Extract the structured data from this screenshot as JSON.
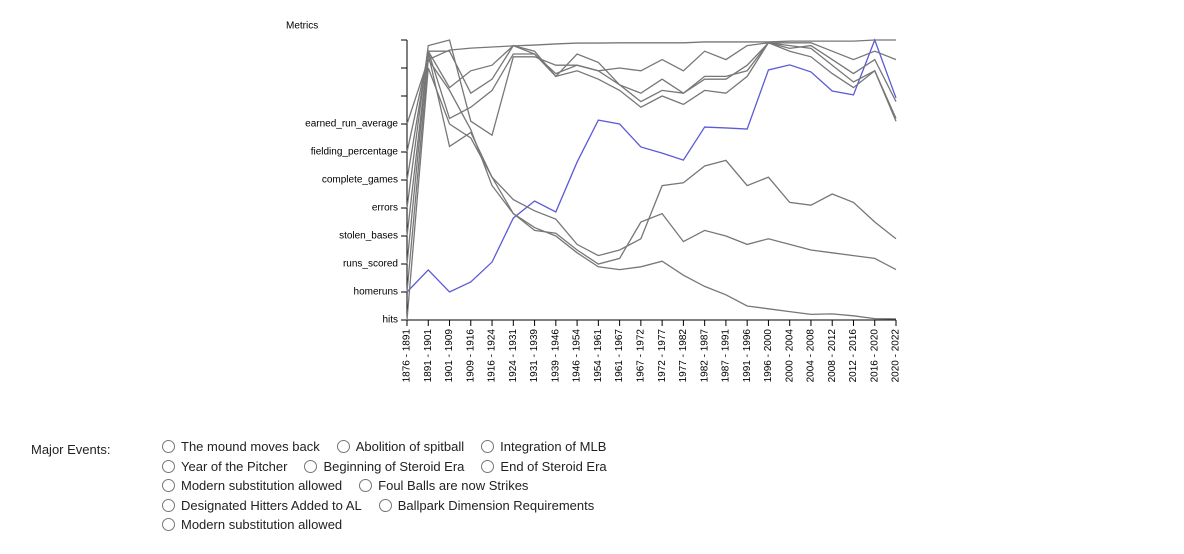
{
  "chart_data": {
    "type": "line",
    "title": "Metrics",
    "categories": [
      "1876 - 1891",
      "1891 - 1901",
      "1901 - 1909",
      "1909 - 1916",
      "1916 - 1924",
      "1924 - 1931",
      "1931 - 1939",
      "1939 - 1946",
      "1946 - 1954",
      "1954 - 1961",
      "1961 - 1967",
      "1967 - 1972",
      "1972 - 1977",
      "1977 - 1982",
      "1982 - 1987",
      "1987 - 1991",
      "1991 - 1996",
      "1996 - 2000",
      "2000 - 2004",
      "2004 - 2008",
      "2008 - 2012",
      "2012 - 2016",
      "2016 - 2020",
      "2020 - 2022"
    ],
    "ylim": [
      0,
      10
    ],
    "yticks": [
      {
        "value": 0,
        "label": "hits"
      },
      {
        "value": 1,
        "label": "homeruns"
      },
      {
        "value": 2,
        "label": "runs_scored"
      },
      {
        "value": 3,
        "label": "stolen_bases"
      },
      {
        "value": 4,
        "label": "errors"
      },
      {
        "value": 5,
        "label": "complete_games"
      },
      {
        "value": 6,
        "label": "fielding_percentage"
      },
      {
        "value": 7,
        "label": "earned_run_average"
      },
      {
        "value": 8,
        "label": null
      },
      {
        "value": 9,
        "label": null
      },
      {
        "value": 10,
        "label": null
      }
    ],
    "series": [
      {
        "color": "#5b5bd6",
        "values": [
          1,
          1.79,
          1,
          1.36,
          2.07,
          3.64,
          4.25,
          3.86,
          5.64,
          7.14,
          7,
          6.18,
          5.96,
          5.71,
          6.89,
          6.86,
          6.82,
          8.93,
          9.11,
          8.86,
          8.18,
          8.04,
          10,
          7.93
        ]
      },
      {
        "color": "#777777",
        "values": [
          7,
          9.3,
          9.64,
          9.71,
          9.75,
          9.79,
          9.82,
          9.86,
          9.89,
          9.89,
          9.9,
          9.9,
          9.9,
          9.9,
          9.93,
          9.93,
          9.93,
          9.93,
          9.96,
          9.96,
          9.96,
          9.96,
          10,
          10
        ]
      },
      {
        "color": "#777777",
        "values": [
          6,
          9.5,
          6.2,
          6.7,
          5.1,
          4.3,
          3.9,
          3.6,
          2.7,
          2.3,
          2.5,
          2.9,
          4.8,
          4.9,
          5.5,
          5.7,
          4.8,
          5.1,
          4.2,
          4.1,
          4.5,
          4.2,
          3.5,
          2.9
        ]
      },
      {
        "color": "#777777",
        "values": [
          0,
          9,
          7,
          6.5,
          5.1,
          3.8,
          3.3,
          3,
          2.4,
          1.9,
          1.8,
          1.9,
          2.1,
          1.6,
          1.2,
          0.9,
          0.5,
          0.4,
          0.3,
          0.2,
          0.22,
          0.15,
          0.05,
          0.04
        ]
      },
      {
        "color": "#777777",
        "values": [
          1,
          9.3,
          8.2,
          6.8,
          4.8,
          3.8,
          3.2,
          3.1,
          2.5,
          2,
          2.2,
          3.5,
          3.8,
          2.8,
          3.2,
          3,
          2.7,
          2.9,
          2.7,
          2.5,
          2.4,
          2.3,
          2.2,
          1.8
        ]
      },
      {
        "color": "#777777",
        "values": [
          2,
          9.6,
          8.3,
          8.9,
          9.1,
          9.8,
          9.6,
          8.7,
          9.5,
          9.2,
          8.4,
          7.8,
          8.2,
          8.1,
          8.6,
          8.6,
          9.1,
          9.9,
          9.8,
          9.7,
          9.1,
          8.5,
          8.9,
          7.2
        ]
      },
      {
        "color": "#777777",
        "values": [
          3,
          9.6,
          7.2,
          7.6,
          8.2,
          9.5,
          9.5,
          8.8,
          9.1,
          8.9,
          8.4,
          8.1,
          8.6,
          8.1,
          8.7,
          8.7,
          8.9,
          9.9,
          9.6,
          9.4,
          8.8,
          8.3,
          8.9,
          7.1
        ]
      },
      {
        "color": "#777777",
        "values": [
          4,
          9.8,
          10,
          7.1,
          6.6,
          9.4,
          9.4,
          9.1,
          9.1,
          8.9,
          9,
          8.9,
          9.3,
          8.9,
          9.6,
          9.3,
          9.8,
          9.9,
          9.9,
          9.9,
          9.6,
          9.3,
          9.6,
          9.3
        ]
      },
      {
        "color": "#777777",
        "values": [
          5,
          9.6,
          9.6,
          8.1,
          8.6,
          9.8,
          9.5,
          8.7,
          8.9,
          8.6,
          8.2,
          7.6,
          8,
          7.7,
          8.2,
          8.1,
          8.7,
          9.9,
          9.7,
          9.8,
          9.3,
          8.8,
          9.3,
          7.8
        ]
      }
    ]
  },
  "events": {
    "label": "Major Events:",
    "rows": [
      [
        "The mound moves back",
        "Abolition of spitball",
        "Integration of MLB"
      ],
      [
        "Year of the Pitcher",
        "Beginning of Steroid Era",
        "End of Steroid Era"
      ],
      [
        "Modern substitution allowed",
        "Foul Balls are now Strikes"
      ],
      [
        "Designated Hitters Added to AL",
        "Ballpark Dimension Requirements"
      ],
      [
        "Modern substitution allowed"
      ]
    ]
  }
}
